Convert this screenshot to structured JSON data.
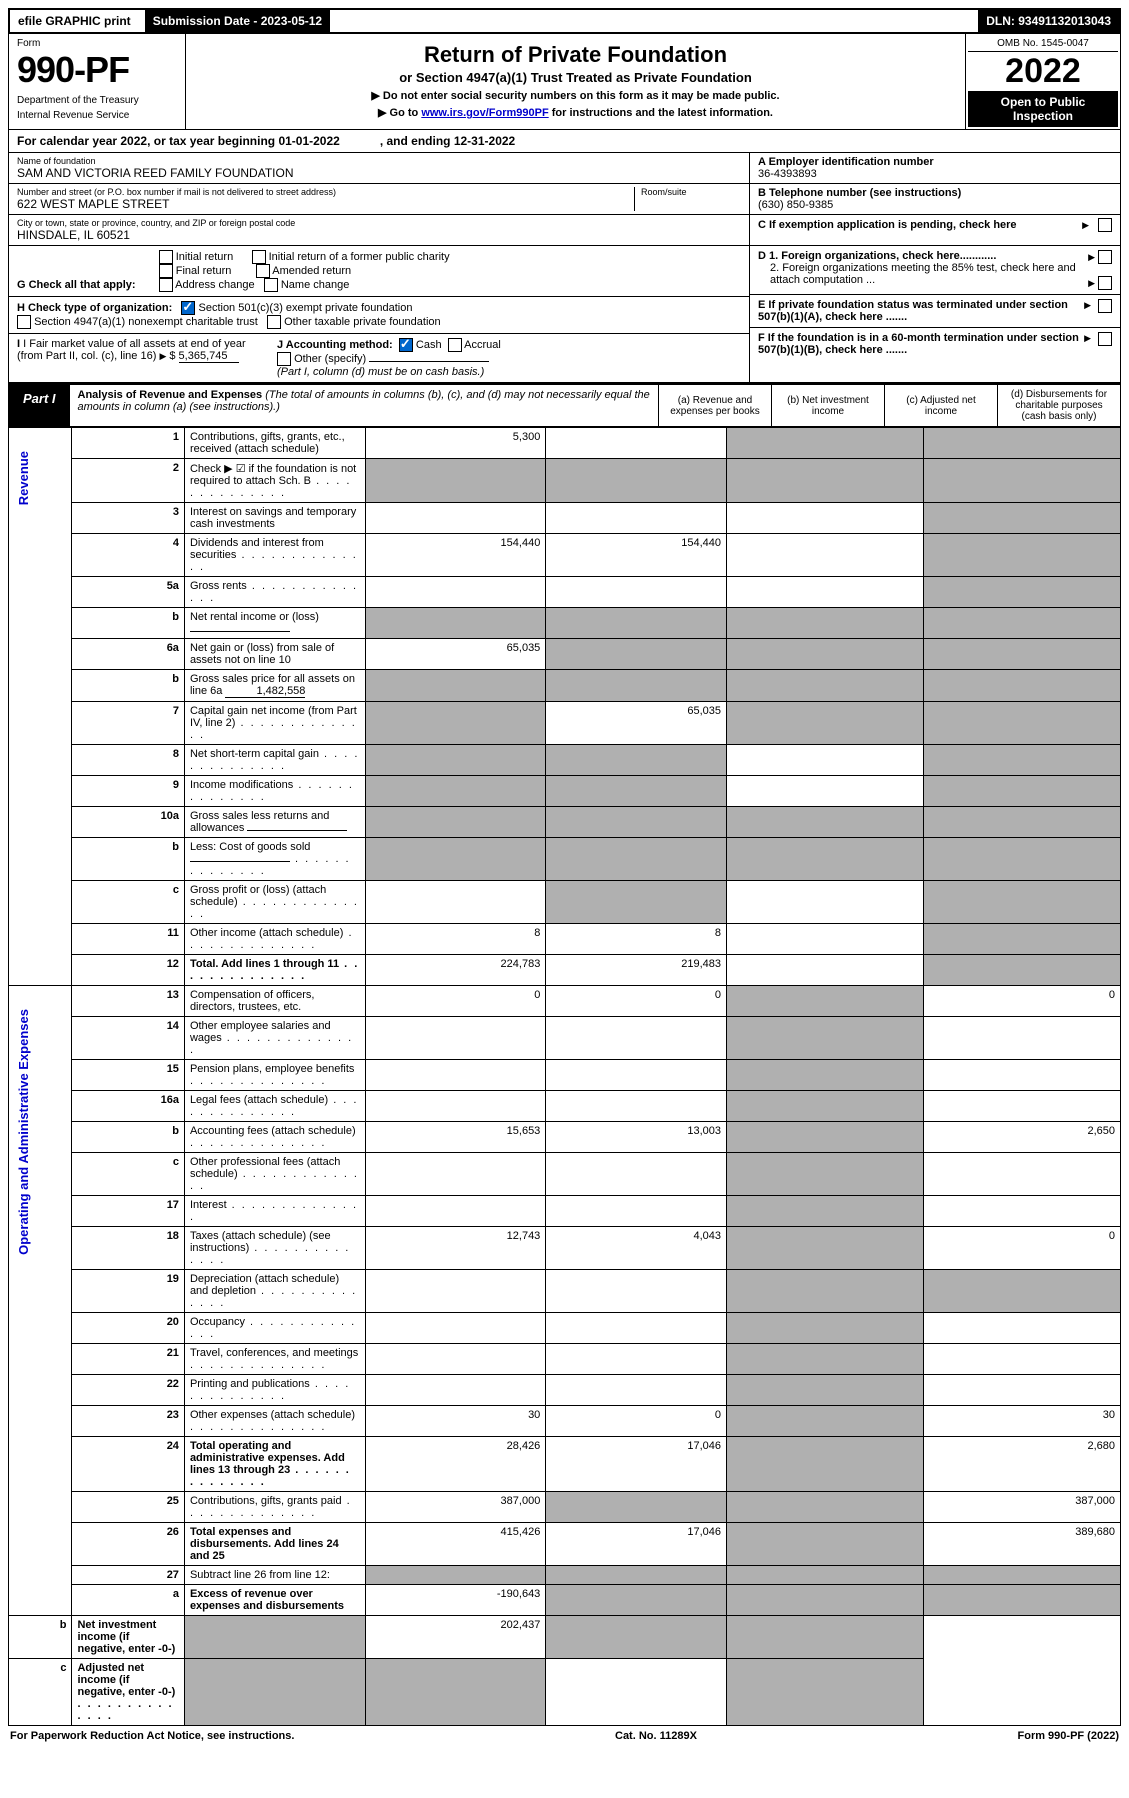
{
  "header": {
    "efile": "efile GRAPHIC print",
    "sub_label": "Submission Date - 2023-05-12",
    "dln": "DLN: 93491132013043"
  },
  "form_block": {
    "form_word": "Form",
    "num": "990-PF",
    "dept1": "Department of the Treasury",
    "dept2": "Internal Revenue Service"
  },
  "title": {
    "main": "Return of Private Foundation",
    "sub": "or Section 4947(a)(1) Trust Treated as Private Foundation",
    "note1": "▶ Do not enter social security numbers on this form as it may be made public.",
    "note2_pre": "▶ Go to ",
    "note2_link": "www.irs.gov/Form990PF",
    "note2_post": " for instructions and the latest information."
  },
  "right": {
    "omb": "OMB No. 1545-0047",
    "year": "2022",
    "open": "Open to Public Inspection"
  },
  "cal": {
    "pre": "For calendar year 2022, or tax year beginning 01-01-2022",
    "end": ", and ending 12-31-2022"
  },
  "ident": {
    "name_lbl": "Name of foundation",
    "name": "SAM AND VICTORIA REED FAMILY FOUNDATION",
    "addr_lbl": "Number and street (or P.O. box number if mail is not delivered to street address)",
    "addr": "622 WEST MAPLE STREET",
    "room_lbl": "Room/suite",
    "city_lbl": "City or town, state or province, country, and ZIP or foreign postal code",
    "city": "HINSDALE, IL  60521",
    "a_lbl": "A Employer identification number",
    "a_val": "36-4393893",
    "b_lbl": "B Telephone number (see instructions)",
    "b_val": "(630) 850-9385",
    "c_lbl": "C If exemption application is pending, check here",
    "d1": "D 1. Foreign organizations, check here............",
    "d2": "2. Foreign organizations meeting the 85% test, check here and attach computation ...",
    "e": "E If private foundation status was terminated under section 507(b)(1)(A), check here .......",
    "f": "F If the foundation is in a 60-month termination under section 507(b)(1)(B), check here .......",
    "g_lbl": "G Check all that apply:",
    "g_opts": [
      "Initial return",
      "Final return",
      "Address change",
      "Initial return of a former public charity",
      "Amended return",
      "Name change"
    ],
    "h_lbl": "H Check type of organization:",
    "h1": "Section 501(c)(3) exempt private foundation",
    "h2": "Section 4947(a)(1) nonexempt charitable trust",
    "h3": "Other taxable private foundation",
    "i_lbl": "I Fair market value of all assets at end of year (from Part II, col. (c), line 16)",
    "i_val": "5,365,745",
    "j_lbl": "J Accounting method:",
    "j_cash": "Cash",
    "j_acc": "Accrual",
    "j_other": "Other (specify)",
    "j_note": "(Part I, column (d) must be on cash basis.)"
  },
  "part1": {
    "tag": "Part I",
    "title": "Analysis of Revenue and Expenses",
    "title_note": " (The total of amounts in columns (b), (c), and (d) may not necessarily equal the amounts in column (a) (see instructions).)",
    "col_a": "(a) Revenue and expenses per books",
    "col_b": "(b) Net investment income",
    "col_c": "(c) Adjusted net income",
    "col_d": "(d) Disbursements for charitable purposes (cash basis only)"
  },
  "vlabels": {
    "rev": "Revenue",
    "exp": "Operating and Administrative Expenses"
  },
  "rows": [
    {
      "n": "1",
      "d": "Contributions, gifts, grants, etc., received (attach schedule)",
      "a": "5,300",
      "b": "",
      "c": "g",
      "dd": "g"
    },
    {
      "n": "2",
      "d": "Check ▶ ☑ if the foundation is not required to attach Sch. B",
      "dots": true,
      "a": "g",
      "b": "g",
      "c": "g",
      "dd": "g"
    },
    {
      "n": "3",
      "d": "Interest on savings and temporary cash investments",
      "a": "",
      "b": "",
      "c": "",
      "dd": "g"
    },
    {
      "n": "4",
      "d": "Dividends and interest from securities",
      "dots": true,
      "a": "154,440",
      "b": "154,440",
      "c": "",
      "dd": "g"
    },
    {
      "n": "5a",
      "d": "Gross rents",
      "dots": true,
      "a": "",
      "b": "",
      "c": "",
      "dd": "g"
    },
    {
      "n": "b",
      "d": "Net rental income or (loss)",
      "inline": true,
      "a": "g",
      "b": "g",
      "c": "g",
      "dd": "g"
    },
    {
      "n": "6a",
      "d": "Net gain or (loss) from sale of assets not on line 10",
      "a": "65,035",
      "b": "g",
      "c": "g",
      "dd": "g"
    },
    {
      "n": "b",
      "d": "Gross sales price for all assets on line 6a",
      "inline_val": "1,482,558",
      "a": "g",
      "b": "g",
      "c": "g",
      "dd": "g"
    },
    {
      "n": "7",
      "d": "Capital gain net income (from Part IV, line 2)",
      "dots": true,
      "a": "g",
      "b": "65,035",
      "c": "g",
      "dd": "g"
    },
    {
      "n": "8",
      "d": "Net short-term capital gain",
      "dots": true,
      "a": "g",
      "b": "g",
      "c": "",
      "dd": "g"
    },
    {
      "n": "9",
      "d": "Income modifications",
      "dots": true,
      "a": "g",
      "b": "g",
      "c": "",
      "dd": "g"
    },
    {
      "n": "10a",
      "d": "Gross sales less returns and allowances",
      "inline": true,
      "a": "g",
      "b": "g",
      "c": "g",
      "dd": "g"
    },
    {
      "n": "b",
      "d": "Less: Cost of goods sold",
      "dots": true,
      "inline": true,
      "a": "g",
      "b": "g",
      "c": "g",
      "dd": "g"
    },
    {
      "n": "c",
      "d": "Gross profit or (loss) (attach schedule)",
      "dots": true,
      "a": "",
      "b": "g",
      "c": "",
      "dd": "g"
    },
    {
      "n": "11",
      "d": "Other income (attach schedule)",
      "dots": true,
      "a": "8",
      "b": "8",
      "c": "",
      "dd": "g"
    },
    {
      "n": "12",
      "d": "Total. Add lines 1 through 11",
      "dots": true,
      "bold": true,
      "a": "224,783",
      "b": "219,483",
      "c": "",
      "dd": "g"
    },
    {
      "n": "13",
      "d": "Compensation of officers, directors, trustees, etc.",
      "a": "0",
      "b": "0",
      "c": "g",
      "dd": "0"
    },
    {
      "n": "14",
      "d": "Other employee salaries and wages",
      "dots": true,
      "a": "",
      "b": "",
      "c": "g",
      "dd": ""
    },
    {
      "n": "15",
      "d": "Pension plans, employee benefits",
      "dots": true,
      "a": "",
      "b": "",
      "c": "g",
      "dd": ""
    },
    {
      "n": "16a",
      "d": "Legal fees (attach schedule)",
      "dots": true,
      "a": "",
      "b": "",
      "c": "g",
      "dd": ""
    },
    {
      "n": "b",
      "d": "Accounting fees (attach schedule)",
      "dots": true,
      "a": "15,653",
      "b": "13,003",
      "c": "g",
      "dd": "2,650"
    },
    {
      "n": "c",
      "d": "Other professional fees (attach schedule)",
      "dots": true,
      "a": "",
      "b": "",
      "c": "g",
      "dd": ""
    },
    {
      "n": "17",
      "d": "Interest",
      "dots": true,
      "a": "",
      "b": "",
      "c": "g",
      "dd": ""
    },
    {
      "n": "18",
      "d": "Taxes (attach schedule) (see instructions)",
      "dots": true,
      "a": "12,743",
      "b": "4,043",
      "c": "g",
      "dd": "0"
    },
    {
      "n": "19",
      "d": "Depreciation (attach schedule) and depletion",
      "dots": true,
      "a": "",
      "b": "",
      "c": "g",
      "dd": "g"
    },
    {
      "n": "20",
      "d": "Occupancy",
      "dots": true,
      "a": "",
      "b": "",
      "c": "g",
      "dd": ""
    },
    {
      "n": "21",
      "d": "Travel, conferences, and meetings",
      "dots": true,
      "a": "",
      "b": "",
      "c": "g",
      "dd": ""
    },
    {
      "n": "22",
      "d": "Printing and publications",
      "dots": true,
      "a": "",
      "b": "",
      "c": "g",
      "dd": ""
    },
    {
      "n": "23",
      "d": "Other expenses (attach schedule)",
      "dots": true,
      "a": "30",
      "b": "0",
      "c": "g",
      "dd": "30"
    },
    {
      "n": "24",
      "d": "Total operating and administrative expenses. Add lines 13 through 23",
      "dots": true,
      "bold": true,
      "a": "28,426",
      "b": "17,046",
      "c": "g",
      "dd": "2,680"
    },
    {
      "n": "25",
      "d": "Contributions, gifts, grants paid",
      "dots": true,
      "a": "387,000",
      "b": "g",
      "c": "g",
      "dd": "387,000"
    },
    {
      "n": "26",
      "d": "Total expenses and disbursements. Add lines 24 and 25",
      "bold": true,
      "a": "415,426",
      "b": "17,046",
      "c": "g",
      "dd": "389,680"
    },
    {
      "n": "27",
      "d": "Subtract line 26 from line 12:",
      "a": "g",
      "b": "g",
      "c": "g",
      "dd": "g"
    },
    {
      "n": "a",
      "d": "Excess of revenue over expenses and disbursements",
      "bold": true,
      "a": "-190,643",
      "b": "g",
      "c": "g",
      "dd": "g"
    },
    {
      "n": "b",
      "d": "Net investment income (if negative, enter -0-)",
      "bold": true,
      "a": "g",
      "b": "202,437",
      "c": "g",
      "dd": "g"
    },
    {
      "n": "c",
      "d": "Adjusted net income (if negative, enter -0-)",
      "dots": true,
      "bold": true,
      "a": "g",
      "b": "g",
      "c": "",
      "dd": "g"
    }
  ],
  "footer": {
    "l": "For Paperwork Reduction Act Notice, see instructions.",
    "m": "Cat. No. 11289X",
    "r": "Form 990-PF (2022)"
  }
}
